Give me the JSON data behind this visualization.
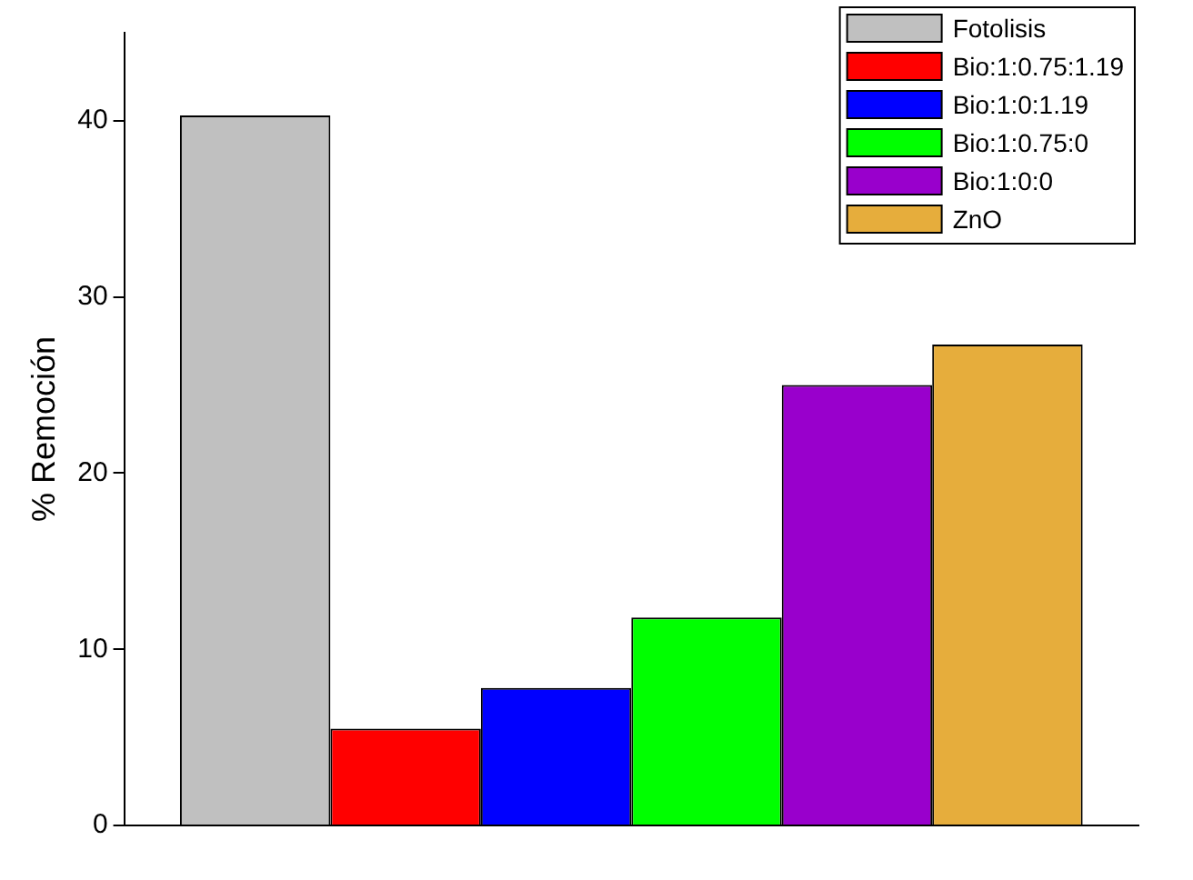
{
  "chart_data": {
    "type": "bar",
    "ylabel": "% Remoción",
    "categories": [
      null
    ],
    "series": [
      {
        "name": "Fotolisis",
        "color": "#c0c0c0",
        "values": [
          40.3
        ]
      },
      {
        "name": "Bio:1:0.75:1.19",
        "color": "#ff0000",
        "values": [
          5.5
        ]
      },
      {
        "name": "Bio:1:0:1.19",
        "color": "#0000ff",
        "values": [
          7.8
        ]
      },
      {
        "name": "Bio:1:0.75:0",
        "color": "#00ff00",
        "values": [
          11.8
        ]
      },
      {
        "name": "Bio:1:0:0",
        "color": "#9900cc",
        "values": [
          25
        ]
      },
      {
        "name": "ZnO",
        "color": "#e6ad3c",
        "values": [
          27.3
        ]
      }
    ],
    "ylim": [
      0,
      45
    ],
    "yticks": [
      0,
      10,
      20,
      30,
      40
    ],
    "grid": false,
    "legend": "top right"
  }
}
